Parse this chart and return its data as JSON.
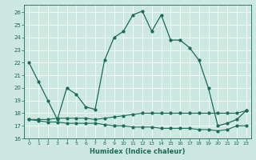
{
  "title": "",
  "xlabel": "Humidex (Indice chaleur)",
  "xlim": [
    -0.5,
    23.5
  ],
  "ylim": [
    16,
    26.6
  ],
  "yticks": [
    16,
    17,
    18,
    19,
    20,
    21,
    22,
    23,
    24,
    25,
    26
  ],
  "xticks": [
    0,
    1,
    2,
    3,
    4,
    5,
    6,
    7,
    8,
    9,
    10,
    11,
    12,
    13,
    14,
    15,
    16,
    17,
    18,
    19,
    20,
    21,
    22,
    23
  ],
  "bg_color": "#cce8e0",
  "line_color": "#1a6b5a",
  "grid_color": "#ffffff",
  "series_main": {
    "x": [
      0,
      1,
      2,
      3,
      4,
      5,
      6,
      7,
      8,
      9,
      10,
      11,
      12,
      13,
      14,
      15,
      16,
      17,
      18,
      19,
      20,
      21,
      22,
      23
    ],
    "y": [
      22,
      20.5,
      19,
      17.5,
      20,
      19.5,
      18.5,
      18.3,
      22.2,
      24.0,
      24.5,
      25.8,
      26.1,
      24.5,
      25.8,
      23.8,
      23.8,
      23.2,
      22.2,
      20.0,
      17.0,
      17.2,
      17.5,
      18.2
    ]
  },
  "series_upper": {
    "x": [
      0,
      1,
      2,
      3,
      4,
      5,
      6,
      7,
      8,
      9,
      10,
      11,
      12,
      13,
      14,
      15,
      16,
      17,
      18,
      19,
      20,
      21,
      22,
      23
    ],
    "y": [
      17.5,
      17.5,
      17.5,
      17.6,
      17.6,
      17.6,
      17.6,
      17.5,
      17.6,
      17.7,
      17.8,
      17.9,
      18.0,
      18.0,
      18.0,
      18.0,
      18.0,
      18.0,
      18.0,
      18.0,
      18.0,
      18.0,
      18.0,
      18.2
    ]
  },
  "series_lower": {
    "x": [
      0,
      1,
      2,
      3,
      4,
      5,
      6,
      7,
      8,
      9,
      10,
      11,
      12,
      13,
      14,
      15,
      16,
      17,
      18,
      19,
      20,
      21,
      22,
      23
    ],
    "y": [
      17.5,
      17.4,
      17.3,
      17.3,
      17.2,
      17.2,
      17.2,
      17.2,
      17.1,
      17.0,
      17.0,
      16.9,
      16.9,
      16.9,
      16.8,
      16.8,
      16.8,
      16.8,
      16.7,
      16.7,
      16.6,
      16.7,
      17.0,
      17.0
    ]
  }
}
